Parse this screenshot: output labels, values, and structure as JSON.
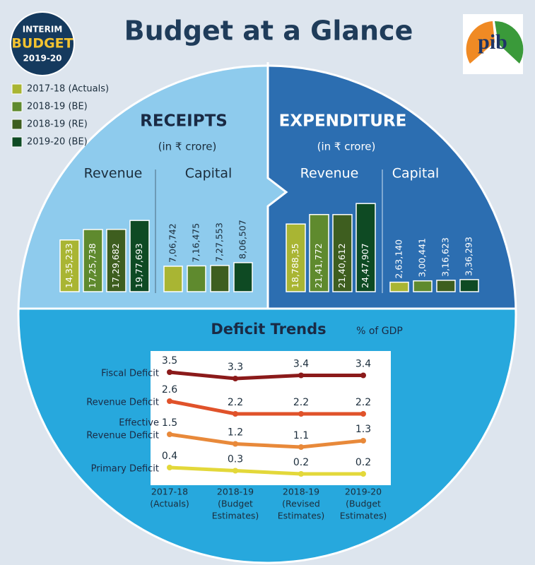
{
  "title": "Budget at a Glance",
  "badge": [
    "INTERIM",
    "BUDGET",
    "2019-20"
  ],
  "logo": "pib",
  "chart_data": [
    {
      "type": "bar",
      "title": "RECEIPTS",
      "subtitle": "(in ₹ crore)",
      "groups": [
        "Revenue",
        "Capital"
      ],
      "series": [
        {
          "name": "2017-18 (Actuals)",
          "color": "#a9b533",
          "values": [
            1435233,
            706742
          ],
          "value_labels": [
            "14,35,233",
            "7,06,742"
          ]
        },
        {
          "name": "2018-19 (BE)",
          "color": "#5f8a2e",
          "values": [
            1725738,
            716475
          ],
          "value_labels": [
            "17,25,738",
            "7,16,475"
          ]
        },
        {
          "name": "2018-19 (RE)",
          "color": "#3e5e1f",
          "values": [
            1729682,
            727553
          ],
          "value_labels": [
            "17,29,682",
            "7,27,553"
          ]
        },
        {
          "name": "2019-20 (BE)",
          "color": "#0e4a23",
          "values": [
            1977693,
            806507
          ],
          "value_labels": [
            "19,77,693",
            "8,06,507"
          ]
        }
      ]
    },
    {
      "type": "bar",
      "title": "EXPENDITURE",
      "subtitle": "(in ₹ crore)",
      "groups": [
        "Revenue",
        "Capital"
      ],
      "series": [
        {
          "color": "#a9b533",
          "values": [
            1878835,
            263140
          ],
          "value_labels": [
            "18,788,35",
            "2,63,140"
          ]
        },
        {
          "color": "#5f8a2e",
          "values": [
            2141772,
            300441
          ],
          "value_labels": [
            "21,41,772",
            "3,00,441"
          ]
        },
        {
          "color": "#3e5e1f",
          "values": [
            2140612,
            316623
          ],
          "value_labels": [
            "21,40,612",
            "3,16,623"
          ]
        },
        {
          "color": "#0e4a23",
          "values": [
            2447907,
            336293
          ],
          "value_labels": [
            "24,47,907",
            "3,36,293"
          ]
        }
      ]
    },
    {
      "type": "line",
      "title": "Deficit Trends",
      "subtitle": "% of GDP",
      "categories": [
        [
          "2017-18",
          "(Actuals)"
        ],
        [
          "2018-19",
          "(Budget",
          "Estimates)"
        ],
        [
          "2018-19",
          "(Revised",
          "Estimates)"
        ],
        [
          "2019-20",
          "(Budget",
          "Estimates)"
        ]
      ],
      "series": [
        {
          "name": [
            "Fiscal Deficit"
          ],
          "color": "#8b1a1a",
          "values": [
            3.5,
            3.3,
            3.4,
            3.4
          ]
        },
        {
          "name": [
            "Revenue Deficit"
          ],
          "color": "#e0522a",
          "values": [
            2.6,
            2.2,
            2.2,
            2.2
          ]
        },
        {
          "name": [
            "Effective",
            "Revenue Deficit"
          ],
          "color": "#e8893a",
          "values": [
            1.5,
            1.2,
            1.1,
            1.3
          ]
        },
        {
          "name": [
            "Primary Deficit"
          ],
          "color": "#e3d83a",
          "values": [
            0.4,
            0.3,
            0.2,
            0.2
          ]
        }
      ]
    }
  ]
}
